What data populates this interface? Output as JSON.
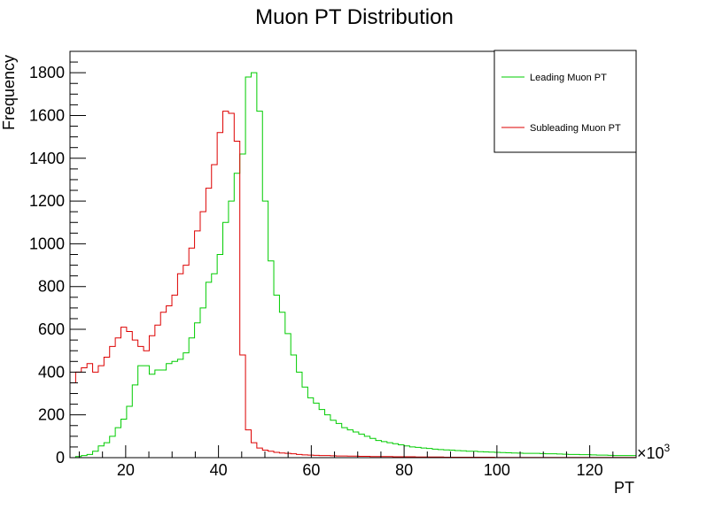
{
  "chart_data": {
    "type": "histogram",
    "title": "Muon PT Distribution",
    "xlabel": "PT",
    "ylabel": "Frequency",
    "x_multiplier": "×10",
    "x_multiplier_exp": "3",
    "xlim": [
      8,
      130
    ],
    "ylim": [
      0,
      1900
    ],
    "bin_start": 8,
    "bin_width": 1.22,
    "x_ticks": [
      20,
      40,
      60,
      80,
      100,
      120
    ],
    "y_ticks": [
      0,
      200,
      400,
      600,
      800,
      1000,
      1200,
      1400,
      1600,
      1800
    ],
    "legend_position": "top-right",
    "grid": false,
    "series": [
      {
        "name": "Leading Muon PT",
        "color": "#00cc00",
        "values": [
          0,
          5,
          10,
          15,
          30,
          55,
          70,
          100,
          140,
          180,
          240,
          340,
          430,
          430,
          390,
          410,
          410,
          440,
          450,
          460,
          490,
          560,
          630,
          700,
          820,
          860,
          950,
          1100,
          1200,
          1330,
          1420,
          1780,
          1800,
          1620,
          1200,
          920,
          760,
          680,
          580,
          480,
          400,
          330,
          280,
          255,
          225,
          200,
          175,
          160,
          140,
          130,
          120,
          110,
          100,
          90,
          80,
          75,
          70,
          65,
          60,
          55,
          50,
          48,
          45,
          43,
          40,
          38,
          36,
          35,
          33,
          32,
          30,
          30,
          28,
          27,
          26,
          25,
          24,
          23,
          22,
          21,
          20,
          20,
          20,
          19,
          18,
          18,
          17,
          16,
          15,
          15,
          14,
          14,
          13,
          12,
          12,
          11,
          10,
          10,
          10,
          10
        ]
      },
      {
        "name": "Subleading Muon PT",
        "color": "#dd0000",
        "values": [
          350,
          400,
          420,
          440,
          400,
          430,
          470,
          520,
          560,
          610,
          590,
          550,
          520,
          500,
          570,
          620,
          680,
          710,
          760,
          860,
          900,
          980,
          1060,
          1150,
          1260,
          1370,
          1520,
          1620,
          1610,
          1480,
          480,
          130,
          70,
          45,
          35,
          30,
          25,
          22,
          20,
          18,
          15,
          13,
          12,
          11,
          10,
          10,
          9,
          8,
          8,
          7,
          7,
          6,
          6,
          5,
          5,
          5,
          5,
          4,
          4,
          4,
          4,
          3,
          3,
          3,
          3,
          3,
          2,
          2,
          2,
          2,
          2,
          2,
          2,
          2,
          2,
          1,
          1,
          1,
          1,
          1,
          1,
          1,
          1,
          1,
          1,
          1,
          1,
          1,
          1,
          1,
          1,
          1,
          1,
          1,
          1,
          1,
          1,
          1,
          1,
          1
        ]
      }
    ]
  }
}
